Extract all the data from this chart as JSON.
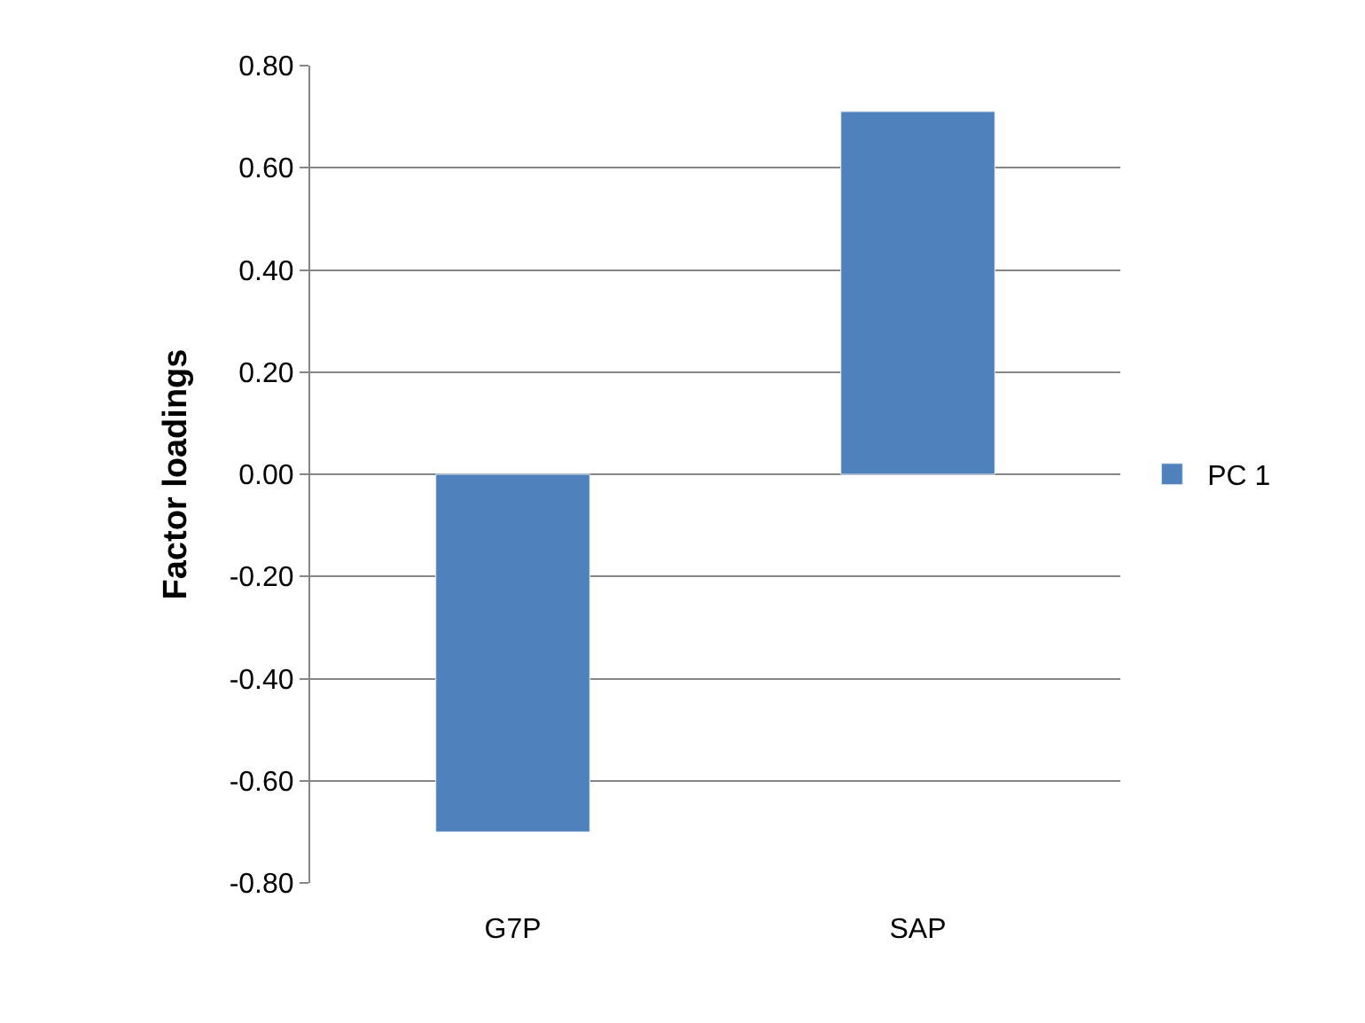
{
  "chart_data": {
    "type": "bar",
    "ylabel": "Factor loadings",
    "categories": [
      "G7P",
      "SAP"
    ],
    "series": [
      {
        "name": "PC 1",
        "color": "#4f81bd",
        "values": [
          -0.7,
          0.71
        ]
      }
    ],
    "ylim": [
      -0.8,
      0.8
    ],
    "yticks": [
      {
        "value": -0.8,
        "label": "-0.80"
      },
      {
        "value": -0.6,
        "label": "-0.60"
      },
      {
        "value": -0.4,
        "label": "-0.40"
      },
      {
        "value": -0.2,
        "label": "-0.20"
      },
      {
        "value": 0,
        "label": "0.00"
      },
      {
        "value": 0.2,
        "label": "0.20"
      },
      {
        "value": 0.4,
        "label": "0.40"
      },
      {
        "value": 0.6,
        "label": "0.60"
      },
      {
        "value": 0.8,
        "label": "0.80"
      }
    ],
    "grid": "y",
    "legend": "right"
  }
}
